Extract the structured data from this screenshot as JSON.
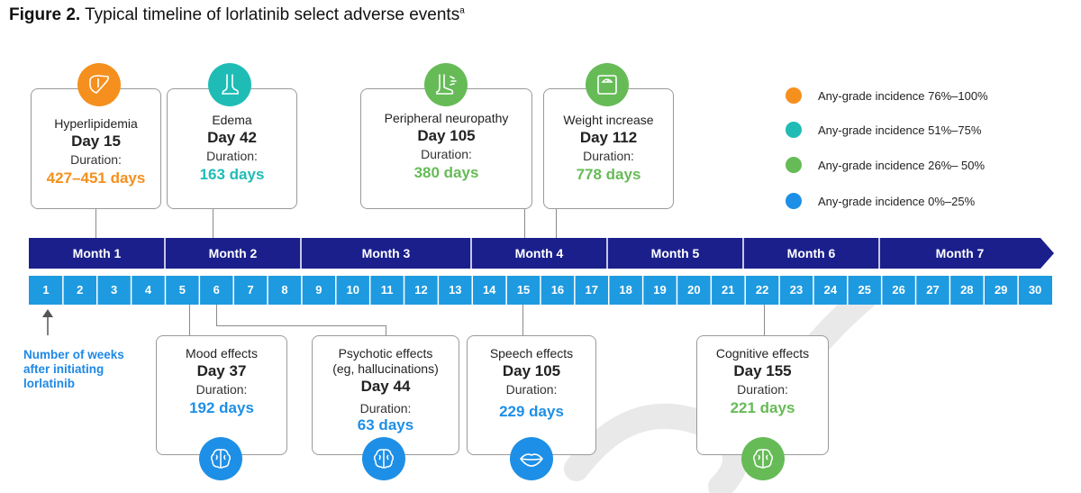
{
  "figure": {
    "title_bold": "Figure 2.",
    "title_text": " Typical timeline of lorlatinib select adverse events",
    "title_sup": "a"
  },
  "colors": {
    "orange": "#f5901e",
    "teal": "#1fbcb6",
    "green": "#66bb57",
    "blue": "#1e8fe6",
    "navy": "#1a1f8c",
    "week_blue": "#1e9ae0"
  },
  "legend": [
    {
      "label": "Any-grade incidence 76%–100%",
      "color": "#f5901e"
    },
    {
      "label": "Any-grade incidence 51%–75%",
      "color": "#1fbcb6"
    },
    {
      "label": "Any-grade incidence 26%–  50%",
      "color": "#66bb57"
    },
    {
      "label": "Any-grade incidence 0%–25%",
      "color": "#1e8fe6"
    }
  ],
  "timeline": {
    "months": [
      "Month 1",
      "Month 2",
      "Month 3",
      "Month 4",
      "Month 5",
      "Month 6",
      "Month 7"
    ],
    "weeks": [
      "1",
      "2",
      "3",
      "4",
      "5",
      "6",
      "7",
      "8",
      "9",
      "10",
      "11",
      "12",
      "13",
      "14",
      "15",
      "16",
      "17",
      "18",
      "19",
      "20",
      "21",
      "22",
      "23",
      "24",
      "25",
      "26",
      "27",
      "28",
      "29",
      "30"
    ],
    "note_lines": [
      "Number of weeks",
      "after initiating",
      "lorlatinib"
    ]
  },
  "events_top": [
    {
      "name": "Hyperlipidemia",
      "day": "Day 15",
      "duration_label": "Duration:",
      "duration": "427–451 days",
      "color": "#f5901e",
      "icon": "liver-icon"
    },
    {
      "name": "Edema",
      "day": "Day 42",
      "duration_label": "Duration:",
      "duration": "163 days",
      "color": "#1fbcb6",
      "icon": "foot-icon"
    },
    {
      "name": "Peripheral neuropathy",
      "day": "Day 105",
      "duration_label": "Duration:",
      "duration": "380 days",
      "color": "#66bb57",
      "icon": "foot-nerve-icon"
    },
    {
      "name": "Weight increase",
      "day": "Day 112",
      "duration_label": "Duration:",
      "duration": "778 days",
      "color": "#66bb57",
      "icon": "scale-icon"
    }
  ],
  "events_bottom": [
    {
      "name": "Mood effects",
      "day": "Day 37",
      "duration_label": "Duration:",
      "duration": "192 days",
      "color": "#1e8fe6",
      "icon": "brain-icon"
    },
    {
      "name": "Psychotic effects",
      "name2": "(eg, hallucinations)",
      "day": "Day 44",
      "duration_label": "Duration:",
      "duration": "63 days",
      "color": "#1e8fe6",
      "icon": "brain-icon"
    },
    {
      "name": "Speech effects",
      "day": "Day 105",
      "duration_label": "Duration:",
      "duration": "229 days",
      "color": "#1e8fe6",
      "icon": "lips-icon"
    },
    {
      "name": "Cognitive effects",
      "day": "Day 155",
      "duration_label": "Duration:",
      "duration": "221 days",
      "color": "#66bb57",
      "icon": "brain-icon"
    }
  ]
}
